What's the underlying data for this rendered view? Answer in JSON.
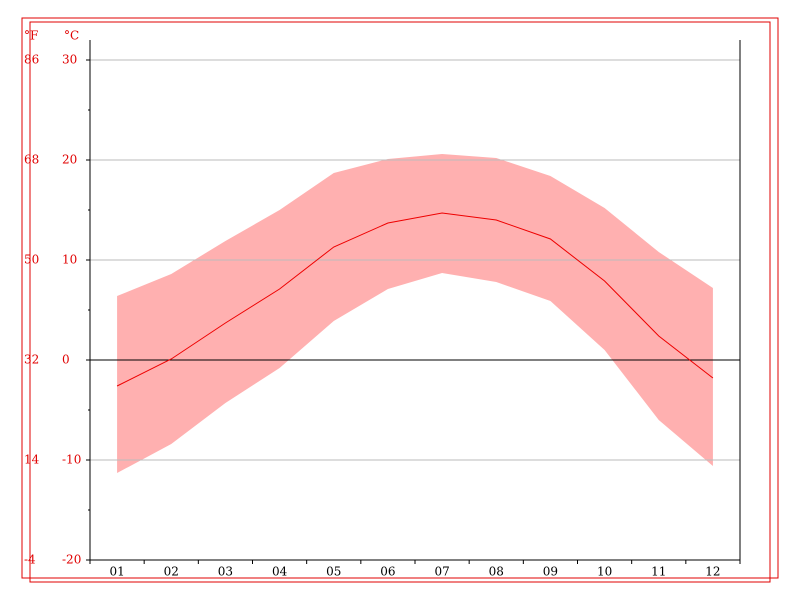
{
  "chart_data": {
    "type": "climate",
    "y_unit": "°C",
    "y2_unit": "°F",
    "categories": [
      "01",
      "02",
      "03",
      "04",
      "05",
      "06",
      "07",
      "08",
      "09",
      "10",
      "11",
      "12"
    ],
    "line": {
      "values": [
        -2.6,
        0.1,
        3.7,
        7.1,
        11.3,
        13.7,
        14.7,
        14.0,
        12.1,
        7.9,
        2.4,
        -1.8
      ],
      "color": "#ee0000"
    },
    "band": {
      "high": [
        6.4,
        8.6,
        11.9,
        15.0,
        18.7,
        20.1,
        20.6,
        20.2,
        18.4,
        15.2,
        10.8,
        7.2
      ],
      "low": [
        -11.3,
        -8.4,
        -4.3,
        -0.8,
        3.9,
        7.1,
        8.7,
        7.8,
        5.9,
        1.0,
        -6.0,
        -10.6
      ],
      "color": "#ffb0b0"
    },
    "ylim": [
      -20,
      30
    ],
    "yticks": [
      -20,
      -10,
      0,
      10,
      20,
      30
    ],
    "y2lim": [
      -4,
      86
    ],
    "y2ticks": [
      -4,
      14,
      32,
      50,
      68,
      86
    ],
    "grid": true
  }
}
